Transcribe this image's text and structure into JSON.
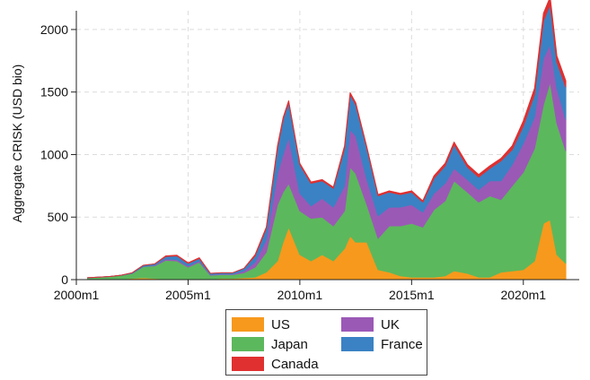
{
  "chart_data": {
    "type": "area",
    "stacked": true,
    "title": "",
    "xlabel": "",
    "ylabel": "Aggregate CRISK (USD bio)",
    "ylim": [
      0,
      2150
    ],
    "xlim": [
      2000.0,
      2022.5
    ],
    "x_ticks": [
      {
        "value": 2000.0,
        "label": "2000m1"
      },
      {
        "value": 2005.0,
        "label": "2005m1"
      },
      {
        "value": 2010.0,
        "label": "2010m1"
      },
      {
        "value": 2015.0,
        "label": "2015m1"
      },
      {
        "value": 2020.0,
        "label": "2020m1"
      }
    ],
    "y_ticks": [
      {
        "value": 0,
        "label": "0"
      },
      {
        "value": 500,
        "label": "500"
      },
      {
        "value": 1000,
        "label": "1000"
      },
      {
        "value": 1500,
        "label": "1500"
      },
      {
        "value": 2000,
        "label": "2000"
      }
    ],
    "grid": true,
    "legend_position": "bottom",
    "x": [
      2000.5,
      2001.0,
      2001.5,
      2002.0,
      2002.5,
      2003.0,
      2003.5,
      2004.0,
      2004.5,
      2005.0,
      2005.5,
      2006.0,
      2006.5,
      2007.0,
      2007.5,
      2008.0,
      2008.5,
      2009.0,
      2009.25,
      2009.5,
      2010.0,
      2010.5,
      2011.0,
      2011.5,
      2012.0,
      2012.25,
      2012.5,
      2013.0,
      2013.5,
      2014.0,
      2014.5,
      2015.0,
      2015.5,
      2016.0,
      2016.5,
      2016.9,
      2017.5,
      2018.0,
      2018.5,
      2019.0,
      2019.5,
      2020.0,
      2020.5,
      2020.9,
      2021.2,
      2021.5,
      2021.9
    ],
    "series": [
      {
        "name": "US",
        "color": "#f7991c",
        "values": [
          0,
          0,
          0,
          5,
          10,
          15,
          10,
          5,
          0,
          0,
          0,
          5,
          10,
          10,
          15,
          20,
          60,
          150,
          300,
          420,
          200,
          150,
          200,
          150,
          250,
          350,
          300,
          300,
          80,
          60,
          30,
          20,
          20,
          20,
          30,
          70,
          50,
          20,
          20,
          60,
          70,
          80,
          150,
          450,
          480,
          200,
          130
        ]
      },
      {
        "name": "Japan",
        "color": "#5cb85c",
        "values": [
          15,
          20,
          25,
          30,
          40,
          90,
          100,
          150,
          150,
          100,
          140,
          30,
          30,
          30,
          40,
          80,
          160,
          450,
          400,
          350,
          350,
          340,
          300,
          280,
          300,
          550,
          550,
          300,
          250,
          370,
          400,
          430,
          400,
          540,
          600,
          720,
          650,
          600,
          650,
          580,
          680,
          780,
          900,
          950,
          1100,
          1050,
          900
        ]
      },
      {
        "name": "UK",
        "color": "#9b59b6",
        "values": [
          0,
          0,
          0,
          0,
          0,
          0,
          5,
          10,
          10,
          10,
          10,
          5,
          5,
          5,
          15,
          40,
          100,
          250,
          300,
          370,
          140,
          100,
          150,
          150,
          200,
          300,
          300,
          200,
          180,
          150,
          150,
          150,
          120,
          130,
          140,
          100,
          100,
          100,
          120,
          150,
          170,
          230,
          250,
          370,
          300,
          280,
          250
        ]
      },
      {
        "name": "France",
        "color": "#3a82c4",
        "values": [
          0,
          0,
          0,
          0,
          5,
          10,
          10,
          20,
          30,
          20,
          20,
          10,
          10,
          10,
          20,
          50,
          90,
          200,
          280,
          280,
          230,
          180,
          140,
          150,
          300,
          280,
          250,
          250,
          160,
          120,
          100,
          100,
          80,
          120,
          140,
          190,
          100,
          100,
          100,
          160,
          120,
          140,
          180,
          300,
          320,
          210,
          260
        ]
      },
      {
        "name": "Canada",
        "color": "#e03030",
        "values": [
          0,
          0,
          0,
          0,
          0,
          0,
          0,
          5,
          5,
          5,
          5,
          0,
          0,
          0,
          0,
          10,
          10,
          20,
          15,
          10,
          10,
          10,
          10,
          10,
          20,
          15,
          15,
          10,
          10,
          10,
          10,
          10,
          10,
          20,
          20,
          20,
          20,
          20,
          20,
          20,
          30,
          40,
          50,
          60,
          60,
          50,
          50
        ]
      }
    ],
    "legend": [
      {
        "name": "US",
        "color": "#f7991c"
      },
      {
        "name": "UK",
        "color": "#9b59b6"
      },
      {
        "name": "Japan",
        "color": "#5cb85c"
      },
      {
        "name": "France",
        "color": "#3a82c4"
      },
      {
        "name": "Canada",
        "color": "#e03030"
      }
    ]
  }
}
